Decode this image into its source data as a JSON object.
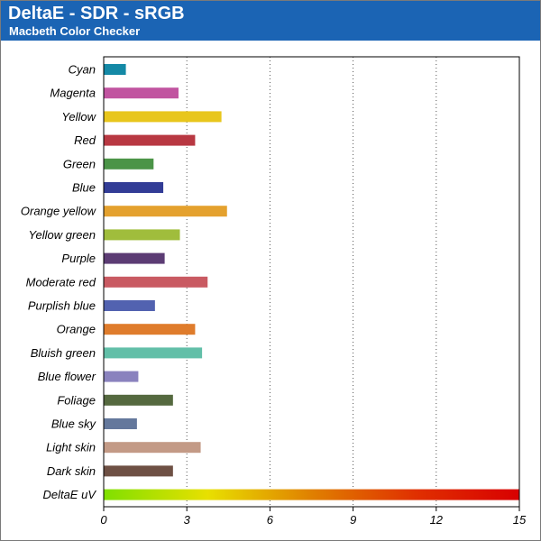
{
  "header": {
    "title": "DeltaE - SDR - sRGB",
    "subtitle": "Macbeth Color Checker"
  },
  "colors": {
    "header_bg": "#1b64b4",
    "header_text": "#ffffff"
  },
  "chart_data": {
    "type": "bar",
    "orientation": "horizontal",
    "title": "DeltaE - SDR - sRGB",
    "subtitle": "Macbeth Color Checker",
    "xlabel": "",
    "ylabel": "",
    "xlim": [
      0,
      15
    ],
    "xticks": [
      0,
      3,
      6,
      9,
      12,
      15
    ],
    "grid": "vertical dotted",
    "legend": "none",
    "categories": [
      "Cyan",
      "Magenta",
      "Yellow",
      "Red",
      "Green",
      "Blue",
      "Orange yellow",
      "Yellow green",
      "Purple",
      "Moderate red",
      "Purplish blue",
      "Orange",
      "Bluish green",
      "Blue flower",
      "Foliage",
      "Blue sky",
      "Light skin",
      "Dark skin",
      "DeltaE uV"
    ],
    "values": [
      0.8,
      2.7,
      4.25,
      3.3,
      1.8,
      2.15,
      4.45,
      2.75,
      2.2,
      3.75,
      1.85,
      3.3,
      3.55,
      1.25,
      2.5,
      1.2,
      3.5,
      2.5,
      15
    ],
    "bar_colors": [
      "#1489a6",
      "#c154a0",
      "#e8c61c",
      "#b83842",
      "#4b9447",
      "#323c96",
      "#e4a12e",
      "#a0bd3c",
      "#5c3c74",
      "#c95a62",
      "#5262b0",
      "#df7c2c",
      "#62bfa8",
      "#8a82be",
      "#55693f",
      "#64789c",
      "#c39a86",
      "#6e5044",
      "gradient"
    ],
    "gradient_stops": [
      "#7fe000",
      "#e8e000",
      "#e08000",
      "#e03000",
      "#d80000"
    ]
  }
}
